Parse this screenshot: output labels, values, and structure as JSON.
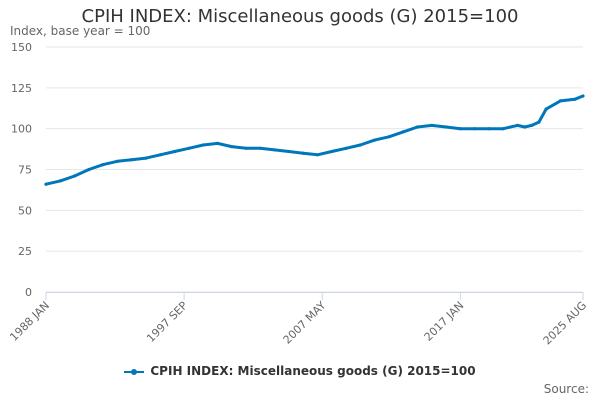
{
  "colors": {
    "series": "#0077bb",
    "grid": "#e6e6e6",
    "axis": "#ccd6eb"
  },
  "source_label": "Source:",
  "chart_data": {
    "type": "line",
    "title": "CPIH INDEX: Miscellaneous goods (G) 2015=100",
    "ylabel": "Index, base year = 100",
    "xlabel": "",
    "ylim": [
      0,
      150
    ],
    "yticks": [
      0,
      25,
      50,
      75,
      100,
      125,
      150
    ],
    "x_tick_labels": [
      "1988 JAN",
      "1997 SEP",
      "2007 MAY",
      "2017 JAN",
      "2025 AUG"
    ],
    "x_range": [
      "1988 JAN",
      "2025 AUG"
    ],
    "grid": true,
    "legend_position": "bottom",
    "series": [
      {
        "name": "CPIH INDEX: Miscellaneous goods (G) 2015=100",
        "x": [
          "1988 JAN",
          "1989 JAN",
          "1990 JAN",
          "1991 JAN",
          "1992 JAN",
          "1993 JAN",
          "1994 JAN",
          "1995 JAN",
          "1996 JAN",
          "1997 JAN",
          "1998 JAN",
          "1999 JAN",
          "2000 JAN",
          "2001 JAN",
          "2002 JAN",
          "2003 JAN",
          "2004 JAN",
          "2005 JAN",
          "2006 JAN",
          "2007 JAN",
          "2008 JAN",
          "2009 JAN",
          "2010 JAN",
          "2011 JAN",
          "2012 JAN",
          "2013 JAN",
          "2014 JAN",
          "2015 JAN",
          "2016 JAN",
          "2017 JAN",
          "2018 JAN",
          "2019 JAN",
          "2020 JAN",
          "2021 JAN",
          "2021 JUL",
          "2022 JAN",
          "2022 JUL",
          "2023 JAN",
          "2024 JAN",
          "2025 JAN",
          "2025 AUG"
        ],
        "values": [
          66,
          68,
          71,
          75,
          78,
          80,
          81,
          82,
          84,
          86,
          88,
          90,
          91,
          89,
          88,
          88,
          87,
          86,
          85,
          84,
          86,
          88,
          90,
          93,
          95,
          98,
          101,
          102,
          101,
          100,
          100,
          100,
          100,
          102,
          101,
          102,
          104,
          112,
          117,
          118,
          120
        ]
      }
    ]
  }
}
